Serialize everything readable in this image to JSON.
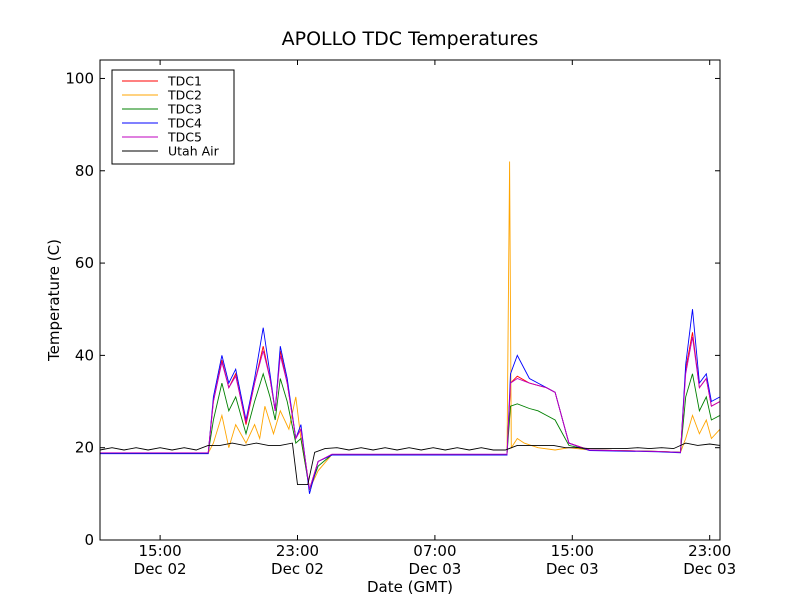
{
  "chart_data": {
    "type": "line",
    "title": "APOLLO TDC Temperatures",
    "xlabel": "Date (GMT)",
    "ylabel": "Temperature (C)",
    "ylim": [
      0,
      104
    ],
    "yticks": [
      0,
      20,
      40,
      60,
      80,
      100
    ],
    "xlim_hours": [
      11.5,
      47.6
    ],
    "xticks": [
      {
        "line1": "15:00",
        "line2": "Dec 02",
        "hour": 15
      },
      {
        "line1": "23:00",
        "line2": "Dec 02",
        "hour": 23
      },
      {
        "line1": "07:00",
        "line2": "Dec 03",
        "hour": 31
      },
      {
        "line1": "15:00",
        "line2": "Dec 03",
        "hour": 39
      },
      {
        "line1": "23:00",
        "line2": "Dec 03",
        "hour": 47
      }
    ],
    "legend_position": "top-left",
    "grid": false,
    "series": [
      {
        "name": "TDC1",
        "color": "#ff0000",
        "x": [
          11.5,
          16,
          17.8,
          18.1,
          18.6,
          19.0,
          19.4,
          20.0,
          20.5,
          21.0,
          21.4,
          21.7,
          22.0,
          22.4,
          22.9,
          23.2,
          23.7,
          24.2,
          25.0,
          30,
          35.2,
          35.4,
          35.8,
          36.5,
          37.0,
          37.5,
          38.0,
          38.8,
          40,
          44,
          45.3,
          45.6,
          46.0,
          46.4,
          46.8,
          47.1,
          47.6
        ],
        "y": [
          18.8,
          18.8,
          18.8,
          30,
          39,
          33,
          36,
          25,
          34,
          42,
          35,
          28,
          41,
          34,
          22,
          24,
          11,
          17,
          18.5,
          18.5,
          18.5,
          34,
          35.5,
          34,
          33.5,
          33,
          32,
          21,
          19.5,
          19.2,
          19,
          37,
          45,
          33,
          35,
          29,
          30
        ]
      },
      {
        "name": "TDC2",
        "color": "#ffa500",
        "x": [
          11.5,
          16,
          17.8,
          18.1,
          18.6,
          19.0,
          19.4,
          20.0,
          20.5,
          20.8,
          21.1,
          21.6,
          22.0,
          22.5,
          22.9,
          23.2,
          23.7,
          24.2,
          25.0,
          30,
          35.2,
          35.35,
          35.45,
          35.8,
          36.2,
          37.0,
          38.0,
          38.8,
          40,
          44,
          45.3,
          45.6,
          46.0,
          46.4,
          46.8,
          47.1,
          47.6
        ],
        "y": [
          18.8,
          18.8,
          18.8,
          21,
          27,
          20,
          25,
          21,
          25,
          22,
          29,
          23,
          28,
          24,
          31,
          22,
          11,
          15,
          18.5,
          18.5,
          18.5,
          82,
          20,
          22,
          21,
          20,
          19.5,
          20,
          19.5,
          19.2,
          19,
          22,
          27,
          23,
          26,
          22,
          24
        ]
      },
      {
        "name": "TDC3",
        "color": "#008000",
        "x": [
          11.5,
          16,
          17.8,
          18.1,
          18.6,
          19.0,
          19.4,
          20.0,
          20.5,
          21.0,
          21.4,
          21.7,
          22.0,
          22.4,
          22.9,
          23.2,
          23.7,
          24.2,
          25.0,
          30,
          35.2,
          35.4,
          35.8,
          36.5,
          37.0,
          37.5,
          38.0,
          38.8,
          40,
          44,
          45.3,
          45.6,
          46.0,
          46.4,
          46.8,
          47.1,
          47.6
        ],
        "y": [
          18.8,
          18.8,
          18.8,
          26,
          34,
          28,
          31,
          23,
          30,
          36,
          31,
          26,
          35,
          30,
          21,
          22,
          11,
          16,
          18.5,
          18.5,
          18.5,
          29,
          29.5,
          28.5,
          28,
          27,
          26,
          20.5,
          19.5,
          19.2,
          19,
          31,
          36,
          28,
          31,
          26,
          27
        ]
      },
      {
        "name": "TDC4",
        "color": "#0000ff",
        "x": [
          11.5,
          16,
          17.8,
          18.1,
          18.6,
          19.0,
          19.4,
          20.0,
          20.5,
          21.0,
          21.4,
          21.7,
          22.0,
          22.4,
          22.9,
          23.2,
          23.7,
          24.2,
          25.0,
          30,
          35.2,
          35.4,
          35.8,
          36.5,
          37.0,
          37.5,
          38.0,
          38.8,
          40,
          44,
          45.3,
          45.6,
          46.0,
          46.4,
          46.8,
          47.1,
          47.6
        ],
        "y": [
          18.7,
          18.7,
          18.7,
          31,
          40,
          34,
          37,
          26,
          35,
          46,
          36,
          28,
          42,
          35,
          22,
          25,
          10,
          17,
          18.4,
          18.4,
          18.4,
          36,
          40,
          35,
          34,
          33,
          32,
          21,
          19.4,
          19.1,
          18.9,
          38,
          50,
          34,
          36,
          30,
          31
        ]
      },
      {
        "name": "TDC5",
        "color": "#bf00bf",
        "x": [
          11.5,
          16,
          17.8,
          18.1,
          18.6,
          19.0,
          19.4,
          20.0,
          20.5,
          21.0,
          21.4,
          21.7,
          22.0,
          22.4,
          22.9,
          23.2,
          23.7,
          24.2,
          25.0,
          30,
          35.2,
          35.4,
          35.8,
          36.5,
          37.0,
          37.5,
          38.0,
          38.8,
          40,
          44,
          45.3,
          45.6,
          46.0,
          46.4,
          46.8,
          47.1,
          47.6
        ],
        "y": [
          18.9,
          18.9,
          18.9,
          30,
          38.5,
          33,
          35.5,
          25.5,
          34,
          41,
          35,
          28,
          40,
          34,
          22,
          24,
          11,
          17,
          18.6,
          18.6,
          18.6,
          34,
          35,
          34,
          33.5,
          33,
          32,
          21,
          19.5,
          19.2,
          19,
          36,
          44,
          33,
          35,
          29,
          30
        ]
      },
      {
        "name": "Utah Air",
        "color": "#000000",
        "x": [
          11.5,
          12.2,
          12.9,
          13.6,
          14.3,
          15.0,
          15.7,
          16.4,
          17.1,
          17.8,
          18.5,
          19.2,
          19.9,
          20.6,
          21.3,
          22.0,
          22.7,
          23.0,
          23.3,
          23.6,
          24.0,
          24.6,
          25.3,
          26.0,
          26.7,
          27.4,
          28.1,
          28.8,
          29.5,
          30.2,
          30.9,
          31.6,
          32.3,
          33.0,
          33.7,
          34.4,
          35.1,
          35.8,
          36.5,
          37.2,
          37.9,
          38.6,
          39.3,
          40.0,
          40.7,
          41.4,
          42.1,
          42.8,
          43.5,
          44.2,
          44.9,
          45.6,
          46.3,
          47.0,
          47.6
        ],
        "y": [
          19.5,
          20,
          19.5,
          20,
          19.5,
          20,
          19.5,
          20,
          19.5,
          20.5,
          20.5,
          21,
          20.5,
          21,
          20.5,
          20.5,
          21,
          12,
          12,
          12,
          19,
          19.8,
          20,
          19.5,
          20,
          19.5,
          20,
          19.5,
          20,
          19.5,
          20,
          19.5,
          20,
          19.5,
          20,
          19.5,
          19.5,
          20.5,
          20.5,
          20.5,
          20.5,
          20,
          20,
          19.8,
          19.8,
          19.8,
          19.8,
          20,
          19.8,
          20,
          19.8,
          21,
          20.5,
          20.8,
          20.5
        ]
      }
    ]
  }
}
